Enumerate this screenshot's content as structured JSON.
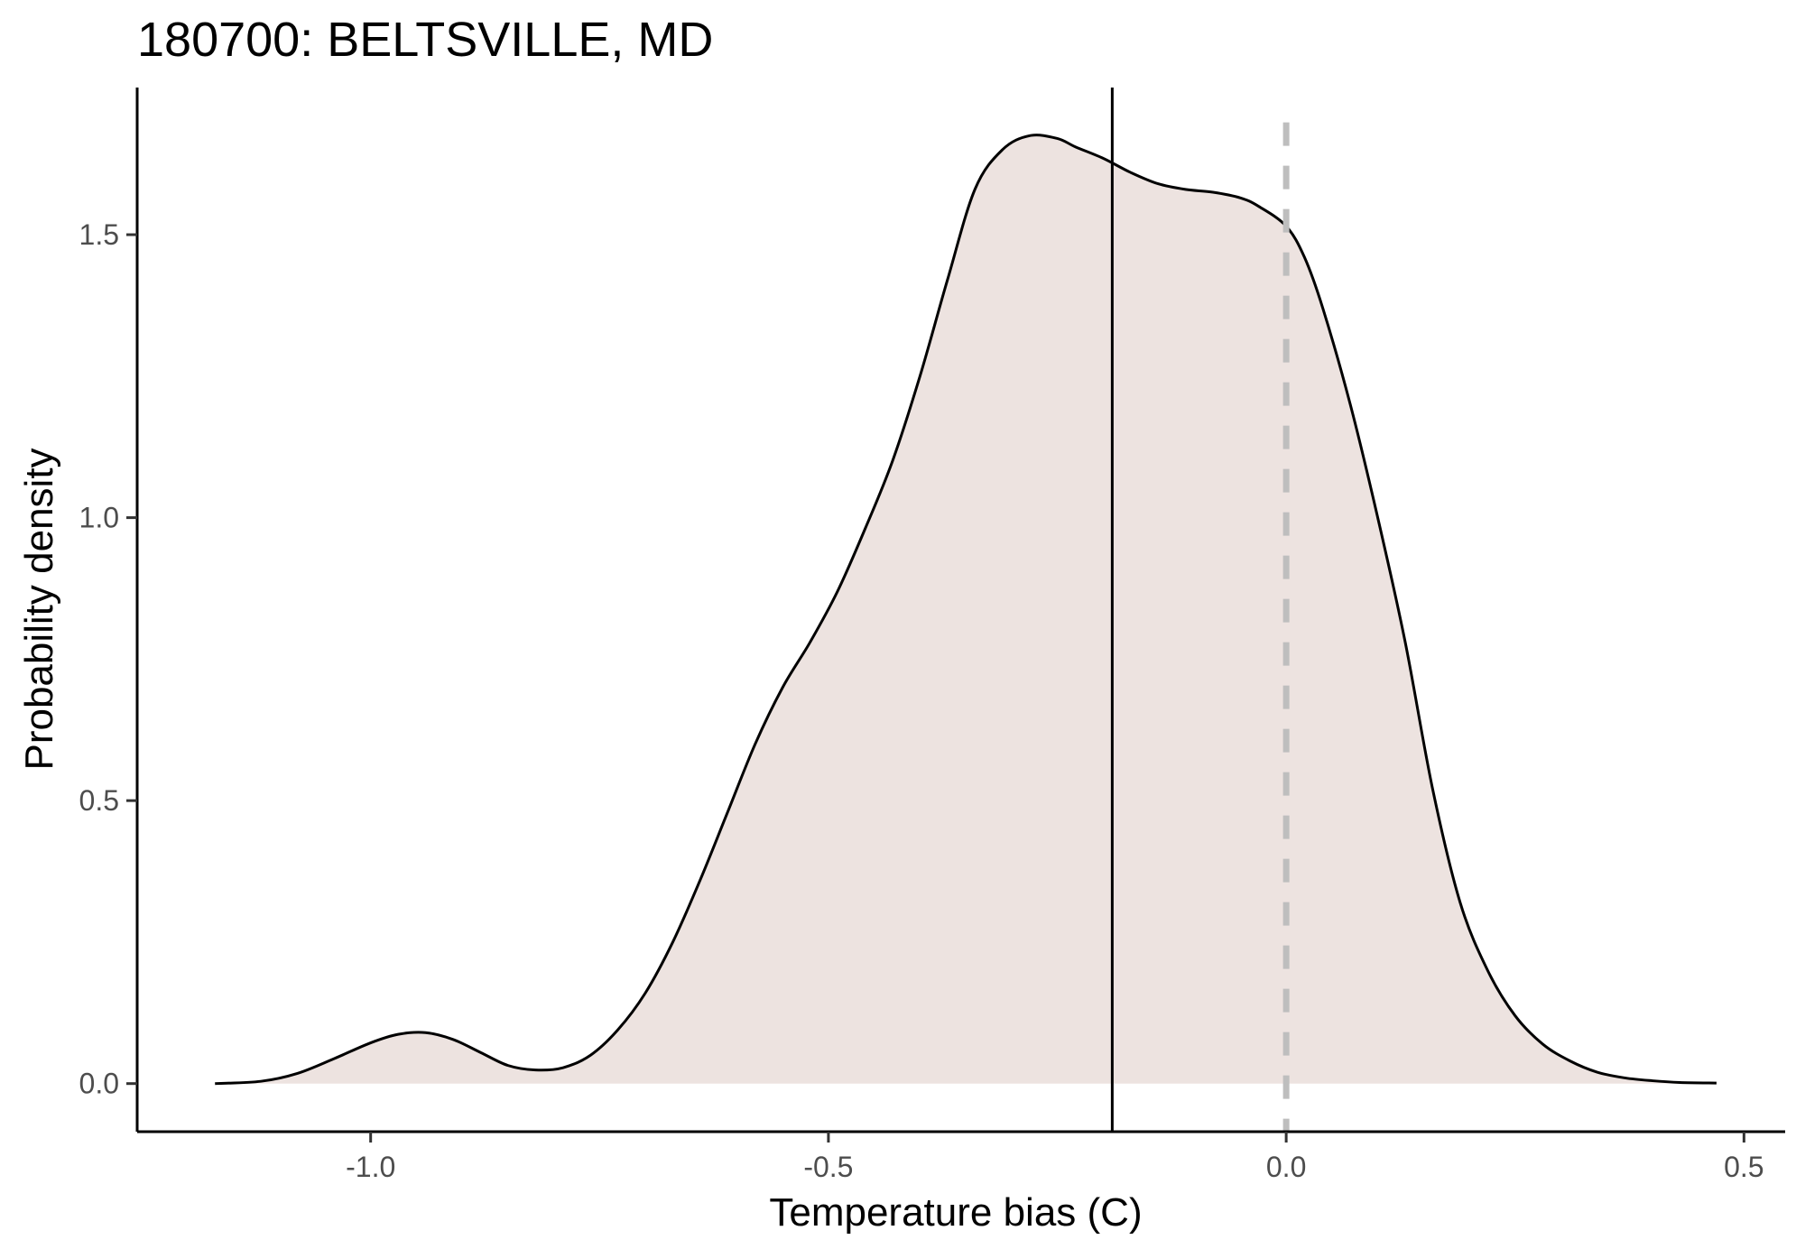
{
  "chart_data": {
    "type": "area",
    "title": "180700: BELTSVILLE, MD",
    "xlabel": "Temperature bias (C)",
    "ylabel": "Probability density",
    "xlim": [
      -1.255,
      0.545
    ],
    "ylim": [
      -0.085,
      1.76
    ],
    "x_ticks": [
      -1.0,
      -0.5,
      0.0,
      0.5
    ],
    "x_tick_labels": [
      "-1.0",
      "-0.5",
      "0.0",
      "0.5"
    ],
    "y_ticks": [
      0.0,
      0.5,
      1.0,
      1.5
    ],
    "y_tick_labels": [
      "0.0",
      "0.5",
      "1.0",
      "1.5"
    ],
    "grid": false,
    "series": [
      {
        "x": [
          -1.17,
          -1.12,
          -1.08,
          -1.04,
          -1.0,
          -0.97,
          -0.94,
          -0.91,
          -0.88,
          -0.85,
          -0.82,
          -0.79,
          -0.76,
          -0.73,
          -0.7,
          -0.67,
          -0.64,
          -0.61,
          -0.58,
          -0.55,
          -0.52,
          -0.49,
          -0.46,
          -0.43,
          -0.4,
          -0.37,
          -0.34,
          -0.31,
          -0.28,
          -0.25,
          -0.23,
          -0.2,
          -0.17,
          -0.14,
          -0.11,
          -0.08,
          -0.05,
          -0.03,
          0.0,
          0.02,
          0.04,
          0.07,
          0.1,
          0.13,
          0.16,
          0.19,
          0.22,
          0.25,
          0.28,
          0.31,
          0.34,
          0.37,
          0.4,
          0.43,
          0.47
        ],
        "y": [
          0.0,
          0.004,
          0.018,
          0.044,
          0.072,
          0.087,
          0.09,
          0.078,
          0.055,
          0.032,
          0.024,
          0.028,
          0.05,
          0.095,
          0.16,
          0.25,
          0.36,
          0.48,
          0.6,
          0.7,
          0.78,
          0.87,
          0.98,
          1.1,
          1.25,
          1.42,
          1.58,
          1.65,
          1.675,
          1.67,
          1.655,
          1.635,
          1.61,
          1.59,
          1.58,
          1.575,
          1.565,
          1.55,
          1.515,
          1.46,
          1.37,
          1.2,
          1.0,
          0.78,
          0.52,
          0.32,
          0.2,
          0.12,
          0.07,
          0.04,
          0.02,
          0.01,
          0.005,
          0.002,
          0.001
        ]
      }
    ],
    "vertical_lines": [
      {
        "x": -0.19,
        "style": "solid",
        "color": "#000000"
      },
      {
        "x": 0.0,
        "style": "dashed",
        "color": "#bebebe"
      }
    ],
    "fill_color": "#ede3e0",
    "line_color": "#000000"
  }
}
